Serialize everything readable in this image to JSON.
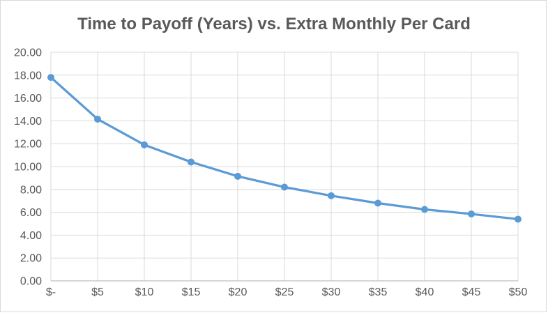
{
  "chart_data": {
    "type": "line",
    "title": "Time to Payoff (Years) vs. Extra Monthly Per Card",
    "categories": [
      "$-",
      "$5",
      "$10",
      "$15",
      "$20",
      "$25",
      "$30",
      "$35",
      "$40",
      "$45",
      "$50"
    ],
    "values": [
      17.8,
      14.15,
      11.9,
      10.4,
      9.15,
      8.2,
      7.45,
      6.8,
      6.25,
      5.85,
      5.4
    ],
    "xlabel": "",
    "ylabel": "",
    "ylim": [
      0,
      20
    ],
    "y_tick_step": 2,
    "y_tick_labels": [
      "0.00",
      "2.00",
      "4.00",
      "6.00",
      "8.00",
      "10.00",
      "12.00",
      "14.00",
      "16.00",
      "18.00",
      "20.00"
    ],
    "grid": true,
    "legend_position": "none",
    "marker": "circle",
    "colors": {
      "series": "#5B9BD5",
      "gridline": "#D9D9D9",
      "axis_line": "#BFBFBF",
      "text": "#595959",
      "chart_border": "#D9D9D9",
      "background": "#FFFFFF"
    }
  }
}
